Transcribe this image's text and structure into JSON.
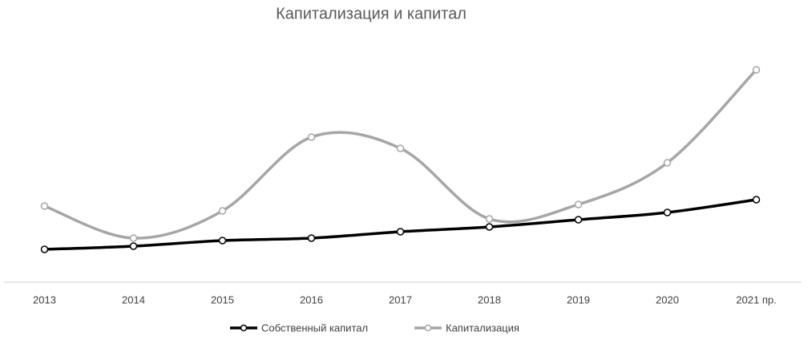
{
  "chart_data": {
    "type": "line",
    "title": "Капитализация и капитал",
    "categories": [
      "2013",
      "2014",
      "2015",
      "2016",
      "2017",
      "2018",
      "2019",
      "2020",
      "2021 пр."
    ],
    "series": [
      {
        "name": "Собственный капитал",
        "color": "#000000",
        "values": [
          41,
          45,
          52,
          55,
          63,
          69,
          78,
          87,
          103
        ]
      },
      {
        "name": "Капитализация",
        "color": "#a6a6a6",
        "values": [
          95,
          55,
          89,
          181,
          167,
          79,
          97,
          149,
          265
        ]
      }
    ],
    "ylim": [
      0,
      312
    ],
    "smooth": true
  }
}
